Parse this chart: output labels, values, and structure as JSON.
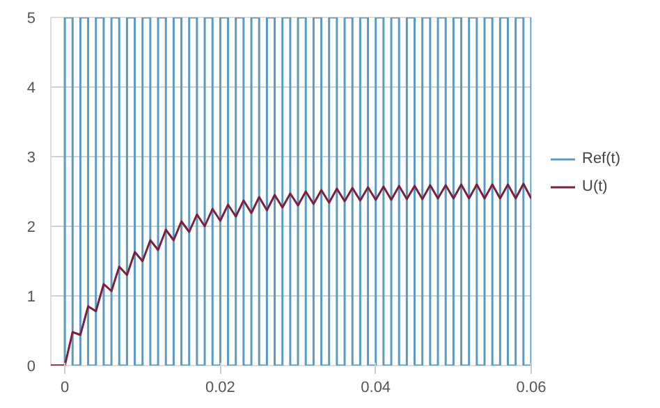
{
  "chart_data": {
    "type": "line",
    "xlim": [
      -0.0018,
      0.06
    ],
    "ylim": [
      0,
      5
    ],
    "xticks": [
      0,
      0.02,
      0.04,
      0.06
    ],
    "yticks": [
      0,
      1,
      2,
      3,
      4,
      5
    ],
    "grid": "y",
    "legend": "right",
    "line_style": "solid",
    "marker": "none",
    "series": [
      {
        "name": "Ref(t)",
        "type": "step",
        "color": "#5a9bc4",
        "x": [
          -0.0018,
          0,
          0.001,
          0.002,
          0.003,
          0.004,
          0.005,
          0.006,
          0.007,
          0.008,
          0.009,
          0.01,
          0.011,
          0.012,
          0.013,
          0.014,
          0.015,
          0.016,
          0.017,
          0.018,
          0.019,
          0.02,
          0.021,
          0.022,
          0.023,
          0.024,
          0.025,
          0.026,
          0.027,
          0.028,
          0.029,
          0.03,
          0.031,
          0.032,
          0.033,
          0.034,
          0.035,
          0.036,
          0.037,
          0.038,
          0.039,
          0.04,
          0.041,
          0.042,
          0.043,
          0.044,
          0.045,
          0.046,
          0.047,
          0.048,
          0.049,
          0.05,
          0.051,
          0.052,
          0.053,
          0.054,
          0.055,
          0.056,
          0.057,
          0.058,
          0.059,
          0.06
        ],
        "values": [
          0,
          5,
          0,
          5,
          0,
          5,
          0,
          5,
          0,
          5,
          0,
          5,
          0,
          5,
          0,
          5,
          0,
          5,
          0,
          5,
          0,
          5,
          0,
          5,
          0,
          5,
          0,
          5,
          0,
          5,
          0,
          5,
          0,
          5,
          0,
          5,
          0,
          5,
          0,
          5,
          0,
          5,
          0,
          5,
          0,
          5,
          0,
          5,
          0,
          5,
          0,
          5,
          0,
          5,
          0,
          5,
          0,
          5,
          0,
          5,
          0,
          5
        ]
      },
      {
        "name": "U(t)",
        "color": "#7b1f3a",
        "x": [
          -0.0018,
          0,
          0.001,
          0.002,
          0.003,
          0.004,
          0.005,
          0.006,
          0.007,
          0.008,
          0.009,
          0.01,
          0.011,
          0.012,
          0.013,
          0.014,
          0.015,
          0.016,
          0.017,
          0.018,
          0.019,
          0.02,
          0.021,
          0.022,
          0.023,
          0.024,
          0.025,
          0.026,
          0.027,
          0.028,
          0.029,
          0.03,
          0.031,
          0.032,
          0.033,
          0.034,
          0.035,
          0.036,
          0.037,
          0.038,
          0.039,
          0.04,
          0.041,
          0.042,
          0.043,
          0.044,
          0.045,
          0.046,
          0.047,
          0.048,
          0.049,
          0.05,
          0.051,
          0.052,
          0.053,
          0.054,
          0.055,
          0.056,
          0.057,
          0.058,
          0.059,
          0.06
        ],
        "values": [
          0,
          0,
          0.48,
          0.44,
          0.85,
          0.78,
          1.17,
          1.07,
          1.42,
          1.3,
          1.63,
          1.5,
          1.8,
          1.66,
          1.95,
          1.8,
          2.07,
          1.92,
          2.17,
          2.0,
          2.25,
          2.08,
          2.31,
          2.14,
          2.37,
          2.19,
          2.42,
          2.23,
          2.45,
          2.27,
          2.47,
          2.3,
          2.5,
          2.32,
          2.52,
          2.34,
          2.54,
          2.36,
          2.55,
          2.37,
          2.56,
          2.38,
          2.57,
          2.38,
          2.58,
          2.39,
          2.58,
          2.39,
          2.59,
          2.4,
          2.59,
          2.4,
          2.6,
          2.4,
          2.6,
          2.4,
          2.6,
          2.4,
          2.6,
          2.4,
          2.61,
          2.4
        ]
      }
    ]
  }
}
